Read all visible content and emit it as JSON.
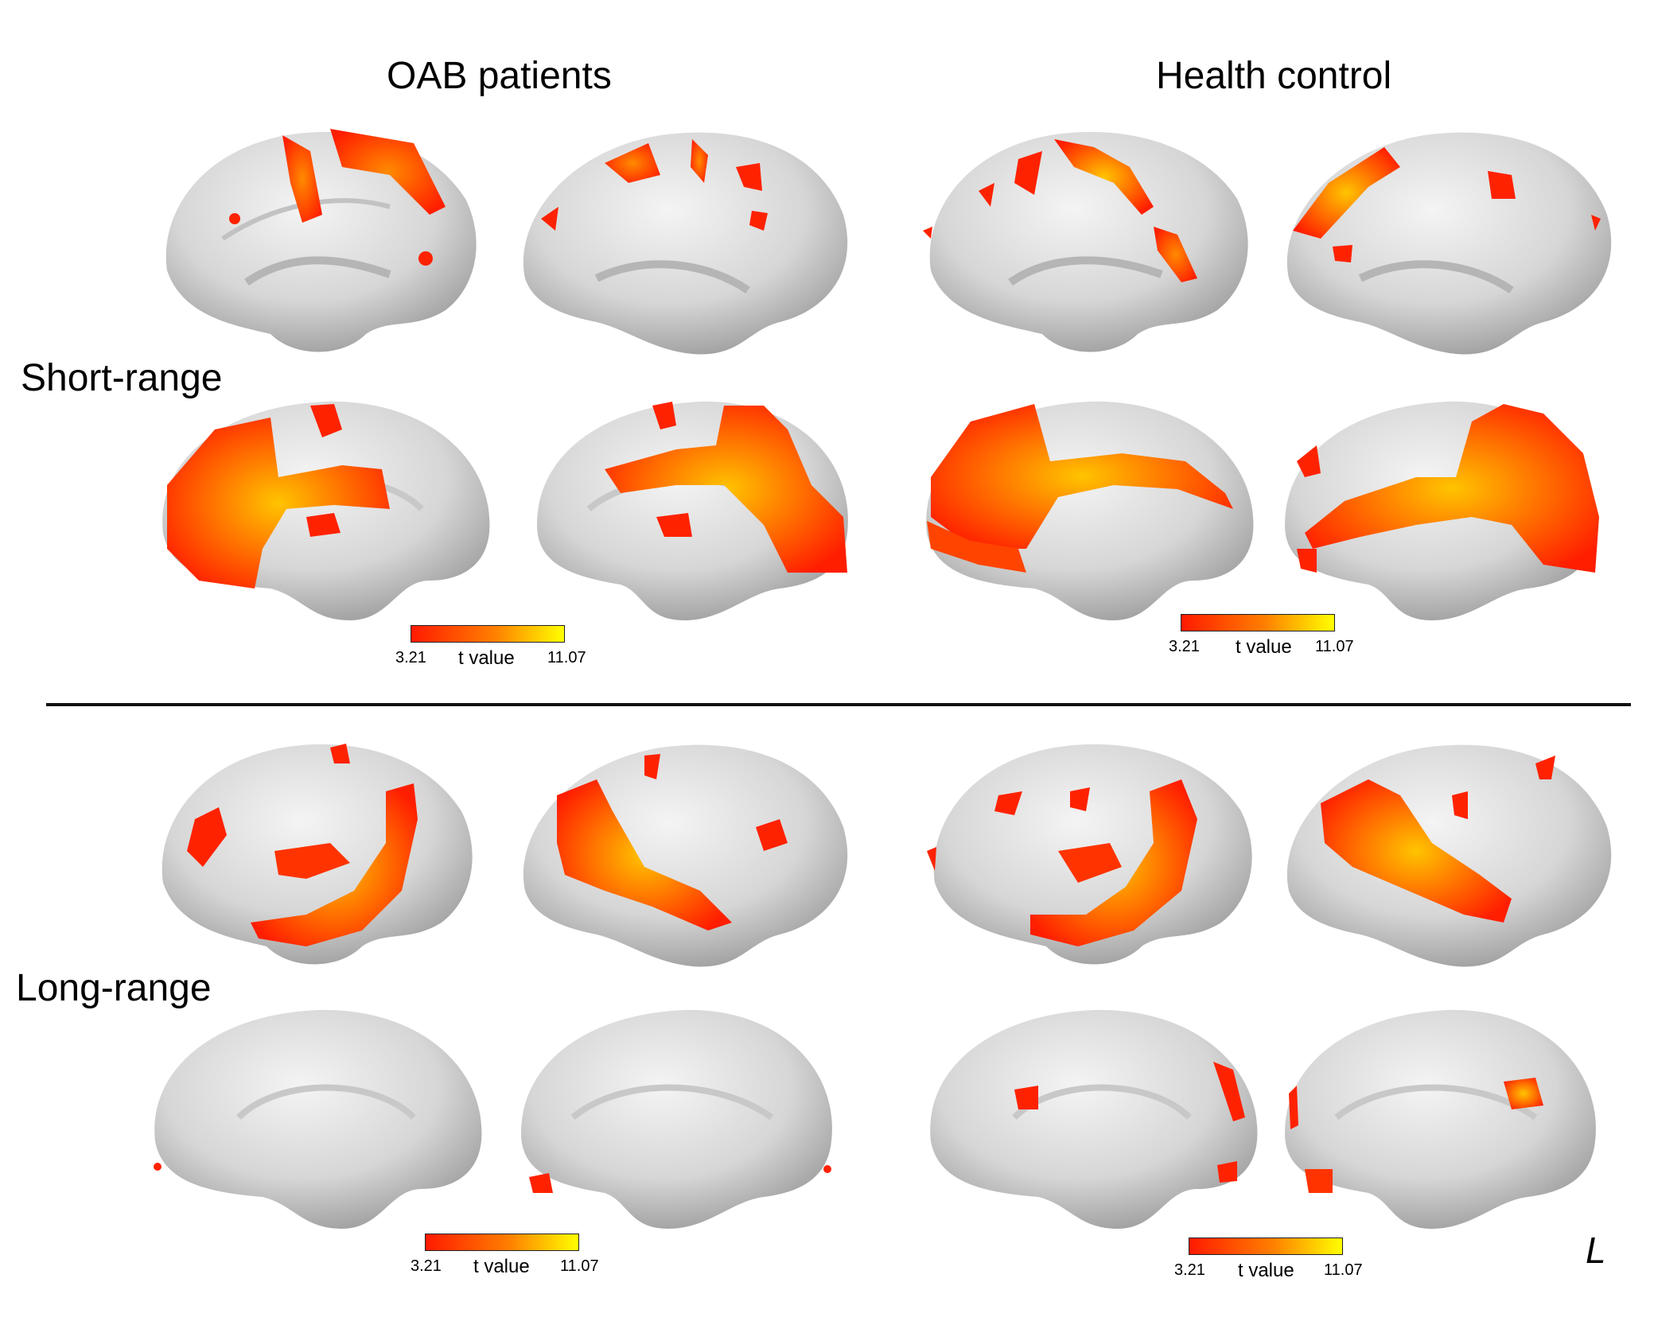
{
  "columns": {
    "left": "OAB patients",
    "right": "Health control"
  },
  "rows": {
    "top": "Short-range",
    "bottom": "Long-range"
  },
  "colorbar": {
    "min_label": "3.21",
    "max_label": "11.07",
    "title": "t value",
    "color_low": "#ff1a00",
    "color_mid": "#ff7a00",
    "color_high": "#ffff00"
  },
  "orientation_label": "L",
  "colors": {
    "brain_surface": "#d9d9d9",
    "activation_red": "#ff2200",
    "activation_orange": "#ff6a00",
    "activation_yellow": "#ffd000"
  }
}
